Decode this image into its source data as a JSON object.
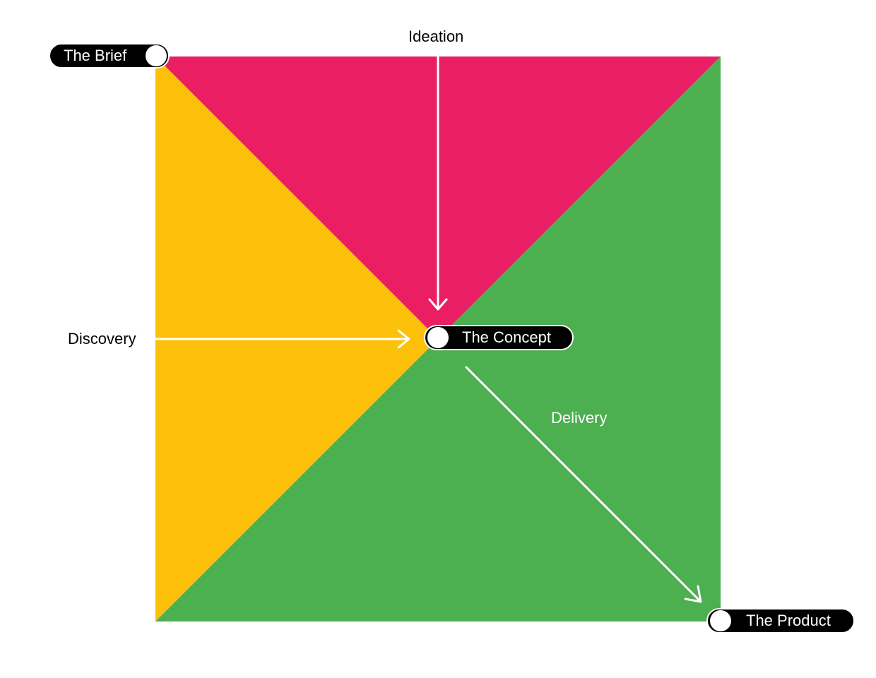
{
  "colors": {
    "ideation": "#E91E63",
    "discovery": "#FDC00A",
    "delivery": "#4CAF50",
    "arrow": "#FFFFFF",
    "pill": "#000000",
    "text_dark": "#000000",
    "text_light": "#FFFFFF"
  },
  "milestones": {
    "brief": "The Brief",
    "concept": "The Concept",
    "product": "The Product"
  },
  "stages": {
    "ideation": "Ideation",
    "discovery": "Discovery",
    "delivery": "Delivery"
  }
}
